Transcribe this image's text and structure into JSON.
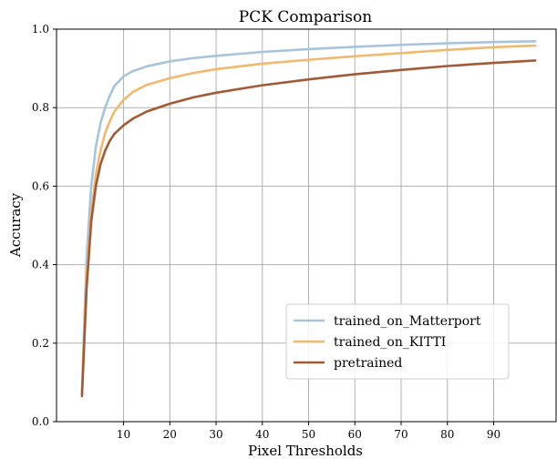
{
  "chart_data": {
    "type": "line",
    "title": "PCK Comparison",
    "xlabel": "Pixel Thresholds",
    "ylabel": "Accuracy",
    "xlim": [
      -4.5,
      103.5
    ],
    "ylim": [
      0.0,
      1.0
    ],
    "xticks": [
      10,
      20,
      30,
      40,
      50,
      60,
      70,
      80,
      90
    ],
    "yticks": [
      0.0,
      0.2,
      0.4,
      0.6,
      0.8,
      1.0
    ],
    "grid": true,
    "legend_position": "lower-right",
    "series": [
      {
        "name": "trained_on_Matterport",
        "color": "#a6c4dc",
        "x": [
          1,
          2,
          3,
          4,
          5,
          6,
          7,
          8,
          10,
          12,
          15,
          20,
          25,
          30,
          40,
          50,
          60,
          70,
          80,
          90,
          99
        ],
        "y": [
          0.08,
          0.42,
          0.6,
          0.7,
          0.76,
          0.8,
          0.83,
          0.855,
          0.88,
          0.893,
          0.905,
          0.918,
          0.926,
          0.932,
          0.942,
          0.949,
          0.955,
          0.96,
          0.964,
          0.967,
          0.969
        ]
      },
      {
        "name": "trained_on_KITTI",
        "color": "#f1b86e",
        "x": [
          1,
          2,
          3,
          4,
          5,
          6,
          7,
          8,
          10,
          12,
          15,
          20,
          25,
          30,
          40,
          50,
          60,
          70,
          80,
          90,
          99
        ],
        "y": [
          0.07,
          0.37,
          0.53,
          0.63,
          0.69,
          0.735,
          0.765,
          0.79,
          0.82,
          0.84,
          0.858,
          0.875,
          0.888,
          0.898,
          0.912,
          0.922,
          0.931,
          0.939,
          0.947,
          0.954,
          0.958
        ]
      },
      {
        "name": "pretrained",
        "color": "#a35a34",
        "x": [
          1,
          2,
          3,
          4,
          5,
          6,
          7,
          8,
          10,
          12,
          15,
          20,
          25,
          30,
          40,
          50,
          60,
          70,
          80,
          90,
          99
        ],
        "y": [
          0.065,
          0.34,
          0.51,
          0.6,
          0.655,
          0.69,
          0.715,
          0.733,
          0.755,
          0.772,
          0.79,
          0.81,
          0.826,
          0.838,
          0.857,
          0.872,
          0.885,
          0.896,
          0.906,
          0.914,
          0.92
        ]
      }
    ]
  }
}
